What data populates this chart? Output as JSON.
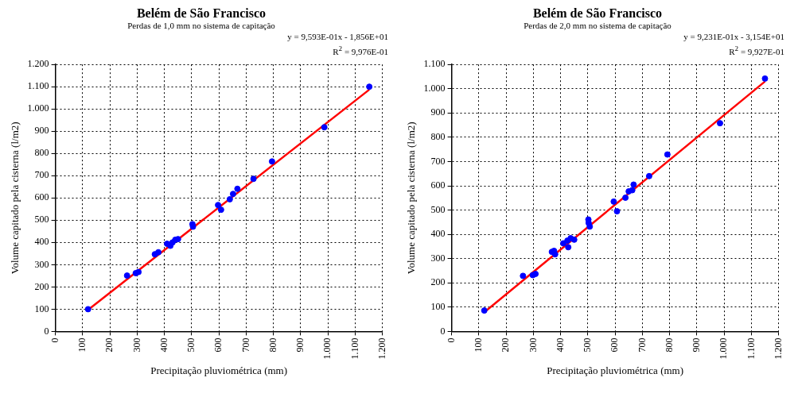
{
  "chart_data": [
    {
      "type": "scatter",
      "title": "Belém de São Francisco",
      "subtitle": "Perdas de 1,0 mm no sistema de capitação",
      "xlabel": "Precipitação pluviométrica (mm)",
      "ylabel": "Volume capitado pela cisterna (l/m2)",
      "annotations": [
        "y = 9,593E-01x - 1,856E+01",
        "R$^{2}$ = 9,976E-01"
      ],
      "series": [
        {
          "type": "scatter",
          "color": "#0000ff",
          "marker": "circle",
          "x": [
            120,
            263,
            295,
            305,
            365,
            378,
            410,
            422,
            430,
            440,
            450,
            503,
            505,
            597,
            608,
            640,
            652,
            668,
            727,
            795,
            987,
            1152
          ],
          "values": [
            100,
            251,
            262,
            267,
            347,
            356,
            394,
            385,
            400,
            412,
            415,
            482,
            471,
            568,
            547,
            594,
            618,
            641,
            686,
            764,
            918,
            1100
          ]
        },
        {
          "type": "line",
          "color": "#ff0000",
          "marker": "none",
          "line_style": "solid",
          "x": [
            120,
            1152
          ],
          "values": [
            97,
            1087
          ]
        }
      ],
      "xlim": [
        0,
        1200
      ],
      "xticks": [
        0,
        100,
        200,
        300,
        400,
        500,
        600,
        700,
        800,
        900,
        {
          "value": 1000,
          "label": "1.000"
        },
        {
          "value": 1100,
          "label": "1.100"
        },
        {
          "value": 1200,
          "label": "1.200"
        }
      ],
      "ylim": [
        0,
        1200
      ],
      "yticks": [
        0,
        100,
        200,
        300,
        400,
        500,
        600,
        700,
        800,
        900,
        {
          "value": 1000,
          "label": "1.000"
        },
        {
          "value": 1100,
          "label": "1.100"
        },
        {
          "value": 1200,
          "label": "1.200"
        }
      ],
      "grid": true,
      "legend": false
    },
    {
      "type": "scatter",
      "title": "Belém de São Francisco",
      "subtitle": "Perdas de 2,0 mm no sistema de capitação",
      "xlabel": "Precipitação pluviométrica (mm)",
      "ylabel": "Volume capitado pela cisterna (l/m2)",
      "annotations": [
        "y = 9,231E-01x - 3,154E+01",
        "R$^{2}$ = 9,927E-01"
      ],
      "series": [
        {
          "type": "scatter",
          "color": "#0000ff",
          "marker": "circle",
          "x": [
            120,
            262,
            298,
            308,
            368,
            380,
            376,
            410,
            425,
            428,
            437,
            450,
            502,
            503,
            507,
            595,
            607,
            638,
            650,
            668,
            663,
            725,
            792,
            985,
            1150
          ],
          "values": [
            86,
            229,
            232,
            237,
            328,
            318,
            332,
            363,
            374,
            347,
            384,
            378,
            461,
            447,
            432,
            535,
            495,
            551,
            577,
            605,
            582,
            640,
            729,
            858,
            1042
          ]
        },
        {
          "type": "line",
          "color": "#ff0000",
          "marker": "none",
          "line_style": "solid",
          "x": [
            120,
            1150
          ],
          "values": [
            79,
            1030
          ]
        }
      ],
      "xlim": [
        0,
        1200
      ],
      "xticks": [
        0,
        100,
        200,
        300,
        400,
        500,
        600,
        700,
        800,
        900,
        {
          "value": 1000,
          "label": "1.000"
        },
        {
          "value": 1100,
          "label": "1.100"
        },
        {
          "value": 1200,
          "label": "1.200"
        }
      ],
      "ylim": [
        0,
        1100
      ],
      "yticks": [
        0,
        100,
        200,
        300,
        400,
        500,
        600,
        700,
        800,
        900,
        {
          "value": 1000,
          "label": "1.000"
        },
        {
          "value": 1100,
          "label": "1.100"
        }
      ],
      "grid": true,
      "legend": false
    }
  ]
}
